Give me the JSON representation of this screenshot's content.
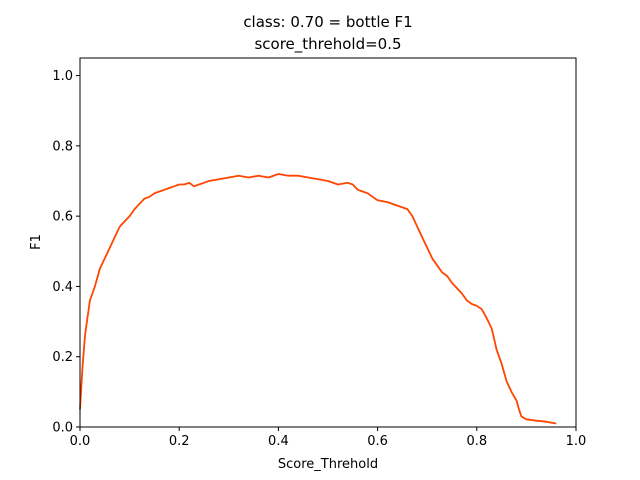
{
  "chart_data": {
    "type": "line",
    "title": "class: 0.70 = bottle F1",
    "subtitle": "score_threhold=0.5",
    "xlabel": "Score_Threhold",
    "ylabel": "F1",
    "xlim": [
      0.0,
      1.0
    ],
    "ylim": [
      0.0,
      1.05
    ],
    "xticks": [
      "0.0",
      "0.2",
      "0.4",
      "0.6",
      "0.8",
      "1.0"
    ],
    "yticks": [
      "0.0",
      "0.2",
      "0.4",
      "0.6",
      "0.8",
      "1.0"
    ],
    "grid": false,
    "series": [
      {
        "color": "#ff4500",
        "x": [
          0.0,
          0.005,
          0.01,
          0.015,
          0.02,
          0.025,
          0.03,
          0.04,
          0.05,
          0.06,
          0.07,
          0.08,
          0.09,
          0.1,
          0.11,
          0.12,
          0.13,
          0.14,
          0.15,
          0.16,
          0.17,
          0.18,
          0.19,
          0.2,
          0.21,
          0.22,
          0.23,
          0.24,
          0.25,
          0.26,
          0.28,
          0.3,
          0.32,
          0.34,
          0.36,
          0.38,
          0.4,
          0.42,
          0.44,
          0.46,
          0.48,
          0.5,
          0.52,
          0.54,
          0.55,
          0.56,
          0.57,
          0.58,
          0.59,
          0.6,
          0.62,
          0.64,
          0.65,
          0.66,
          0.67,
          0.68,
          0.69,
          0.7,
          0.71,
          0.72,
          0.73,
          0.74,
          0.75,
          0.76,
          0.77,
          0.78,
          0.79,
          0.8,
          0.81,
          0.82,
          0.83,
          0.835,
          0.84,
          0.845,
          0.85,
          0.86,
          0.87,
          0.88,
          0.885,
          0.89,
          0.9,
          0.92,
          0.94,
          0.96
        ],
        "y": [
          0.05,
          0.17,
          0.26,
          0.31,
          0.36,
          0.38,
          0.4,
          0.45,
          0.48,
          0.51,
          0.54,
          0.57,
          0.585,
          0.6,
          0.62,
          0.635,
          0.65,
          0.655,
          0.665,
          0.67,
          0.675,
          0.68,
          0.685,
          0.69,
          0.69,
          0.695,
          0.685,
          0.69,
          0.695,
          0.7,
          0.705,
          0.71,
          0.715,
          0.71,
          0.715,
          0.71,
          0.72,
          0.715,
          0.715,
          0.71,
          0.705,
          0.7,
          0.69,
          0.695,
          0.69,
          0.675,
          0.67,
          0.665,
          0.655,
          0.645,
          0.64,
          0.63,
          0.625,
          0.62,
          0.6,
          0.57,
          0.54,
          0.51,
          0.48,
          0.46,
          0.44,
          0.43,
          0.41,
          0.395,
          0.38,
          0.36,
          0.35,
          0.345,
          0.335,
          0.31,
          0.28,
          0.25,
          0.22,
          0.2,
          0.18,
          0.13,
          0.1,
          0.075,
          0.05,
          0.03,
          0.022,
          0.018,
          0.015,
          0.01
        ]
      }
    ]
  }
}
